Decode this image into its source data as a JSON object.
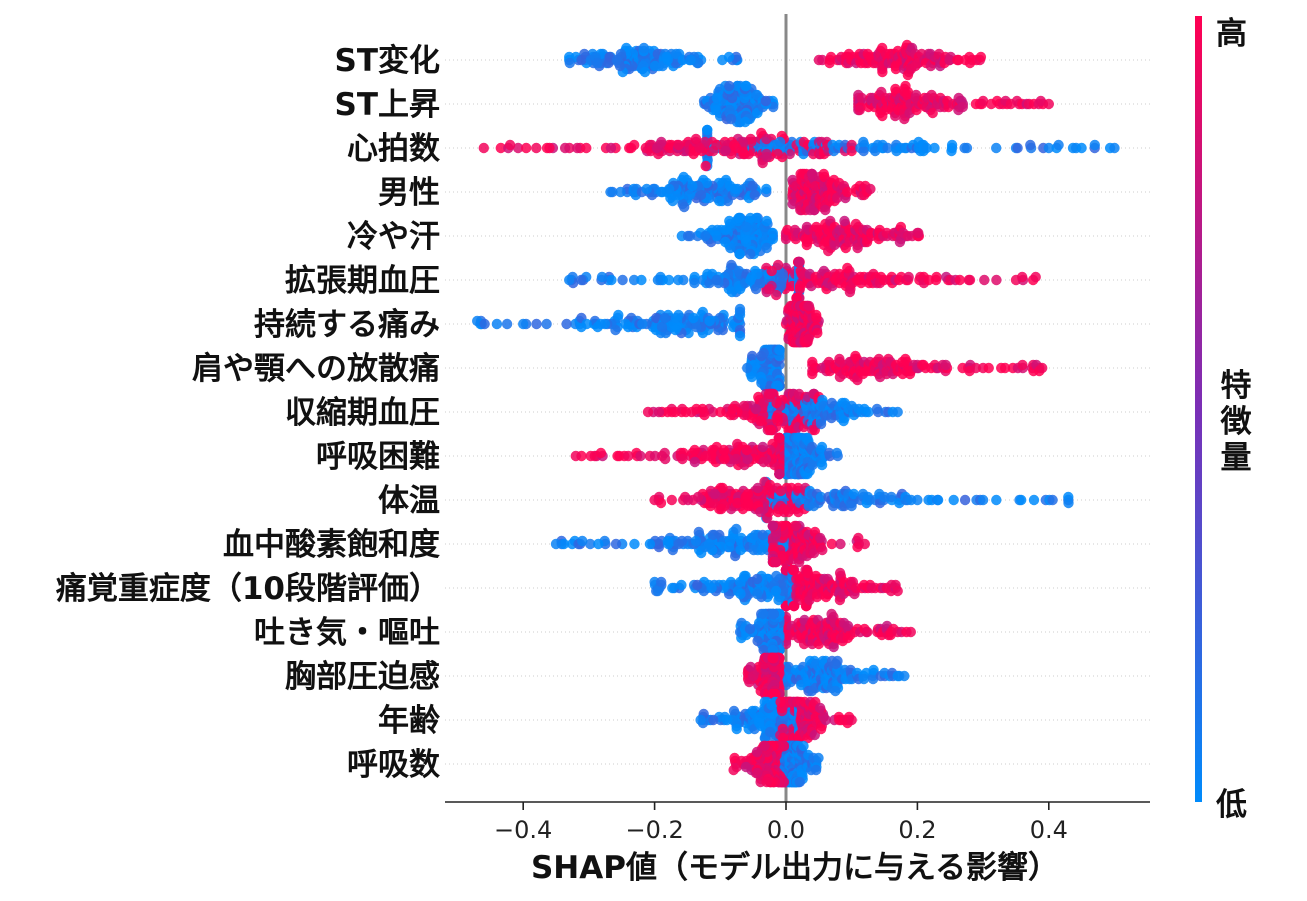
{
  "chart_data": {
    "type": "scatter",
    "subtype": "shap-beeswarm-summary",
    "title": "",
    "xlabel": "SHAP値（モデル出力に与える影響）",
    "ylabel": "",
    "xlim": [
      -0.5,
      0.55
    ],
    "x_ticks": [
      -0.4,
      -0.2,
      0.0,
      0.2,
      0.4
    ],
    "x_tick_labels": [
      "−0.4",
      "−0.2",
      "0.0",
      "0.2",
      "0.4"
    ],
    "grid": "dotted horizontal row guides",
    "zero_line": true,
    "colorbar": {
      "label": "特徴量",
      "high_label": "高",
      "low_label": "低",
      "high_color": "#ff0052",
      "low_color": "#008bfb",
      "position": "right"
    },
    "features": [
      {
        "name": "ST変化",
        "low_range": [
          -0.33,
          -0.07
        ],
        "high_range": [
          0.05,
          0.3
        ],
        "low_center": -0.23,
        "high_center": 0.17,
        "outliers": [],
        "pattern": "low-left-high-right"
      },
      {
        "name": "ST上昇",
        "low_range": [
          -0.13,
          -0.01
        ],
        "high_range": [
          0.11,
          0.4
        ],
        "low_center": -0.07,
        "high_center": 0.18,
        "outliers": [
          0.3,
          0.33,
          0.37,
          0.4
        ],
        "pattern": "low-left-high-right"
      },
      {
        "name": "心拍数",
        "low_range": [
          -0.12,
          0.5
        ],
        "high_range": [
          -0.46,
          0.1
        ],
        "low_center": 0.04,
        "high_center": -0.1,
        "outliers": [
          -0.46,
          -0.42,
          -0.38,
          0.32,
          0.35,
          0.4,
          0.47,
          0.5
        ],
        "pattern": "high-left-low-right"
      },
      {
        "name": "男性",
        "low_range": [
          -0.27,
          -0.03
        ],
        "high_range": [
          0.01,
          0.13
        ],
        "low_center": -0.12,
        "high_center": 0.04,
        "outliers": [],
        "pattern": "low-left-high-right"
      },
      {
        "name": "冷や汗",
        "low_range": [
          -0.16,
          -0.02
        ],
        "high_range": [
          0.0,
          0.21
        ],
        "low_center": -0.06,
        "high_center": 0.08,
        "outliers": [],
        "pattern": "low-left-high-right"
      },
      {
        "name": "拡張期血圧",
        "low_range": [
          -0.33,
          0.02
        ],
        "high_range": [
          -0.03,
          0.38
        ],
        "low_center": -0.04,
        "high_center": 0.08,
        "outliers": [
          -0.33,
          -0.28,
          0.25,
          0.28,
          0.35,
          0.38
        ],
        "pattern": "low-left-high-right"
      },
      {
        "name": "持続する痛み",
        "low_range": [
          -0.47,
          -0.07
        ],
        "high_range": [
          0.0,
          0.05
        ],
        "low_center": -0.17,
        "high_center": 0.02,
        "outliers": [
          -0.47,
          -0.44,
          -0.4
        ],
        "pattern": "low-left-high-right"
      },
      {
        "name": "肩や顎への放散痛",
        "low_range": [
          -0.06,
          -0.01
        ],
        "high_range": [
          0.04,
          0.39
        ],
        "low_center": -0.02,
        "high_center": 0.14,
        "outliers": [
          0.3,
          0.36,
          0.39
        ],
        "pattern": "low-left-high-right"
      },
      {
        "name": "収縮期血圧",
        "low_range": [
          -0.05,
          0.17
        ],
        "high_range": [
          -0.21,
          0.05
        ],
        "low_center": 0.04,
        "high_center": -0.02,
        "outliers": [
          -0.21,
          0.17
        ],
        "pattern": "high-left-low-right"
      },
      {
        "name": "呼吸困難",
        "low_range": [
          0.0,
          0.08
        ],
        "high_range": [
          -0.32,
          -0.01
        ],
        "low_center": 0.02,
        "high_center": -0.06,
        "outliers": [
          -0.32,
          -0.24,
          -0.16
        ],
        "pattern": "high-left-low-right"
      },
      {
        "name": "体温",
        "low_range": [
          -0.03,
          0.43
        ],
        "high_range": [
          -0.2,
          0.03
        ],
        "low_center": 0.05,
        "high_center": -0.05,
        "outliers": [
          -0.2,
          0.2,
          0.3,
          0.43
        ],
        "pattern": "high-left-low-right"
      },
      {
        "name": "血中酸素飽和度",
        "low_range": [
          -0.35,
          0.0
        ],
        "high_range": [
          -0.02,
          0.12
        ],
        "low_center": -0.08,
        "high_center": 0.01,
        "outliers": [
          -0.35,
          -0.31,
          0.11,
          0.12
        ],
        "pattern": "low-left-high-right"
      },
      {
        "name": "痛覚重症度（10段階評価）",
        "low_range": [
          -0.2,
          0.01
        ],
        "high_range": [
          0.0,
          0.17
        ],
        "low_center": -0.03,
        "high_center": 0.04,
        "outliers": [
          -0.2,
          0.16,
          0.17
        ],
        "pattern": "low-left-high-right"
      },
      {
        "name": "吐き気・嘔吐",
        "low_range": [
          -0.07,
          -0.01
        ],
        "high_range": [
          0.0,
          0.19
        ],
        "low_center": -0.02,
        "high_center": 0.05,
        "outliers": [
          0.14,
          0.17,
          0.19
        ],
        "pattern": "low-left-high-right"
      },
      {
        "name": "胸部圧迫感",
        "low_range": [
          0.0,
          0.18
        ],
        "high_range": [
          -0.06,
          -0.01
        ],
        "low_center": 0.05,
        "high_center": -0.02,
        "outliers": [
          0.15,
          0.18
        ],
        "pattern": "high-left-low-right"
      },
      {
        "name": "年齢",
        "low_range": [
          -0.13,
          0.02
        ],
        "high_range": [
          -0.01,
          0.1
        ],
        "low_center": -0.02,
        "high_center": 0.02,
        "outliers": [
          -0.13,
          0.1
        ],
        "pattern": "low-left-high-right"
      },
      {
        "name": "呼吸数",
        "low_range": [
          -0.01,
          0.05
        ],
        "high_range": [
          -0.08,
          0.0
        ],
        "low_center": 0.01,
        "high_center": -0.02,
        "outliers": [],
        "pattern": "high-left-low-right"
      }
    ]
  }
}
